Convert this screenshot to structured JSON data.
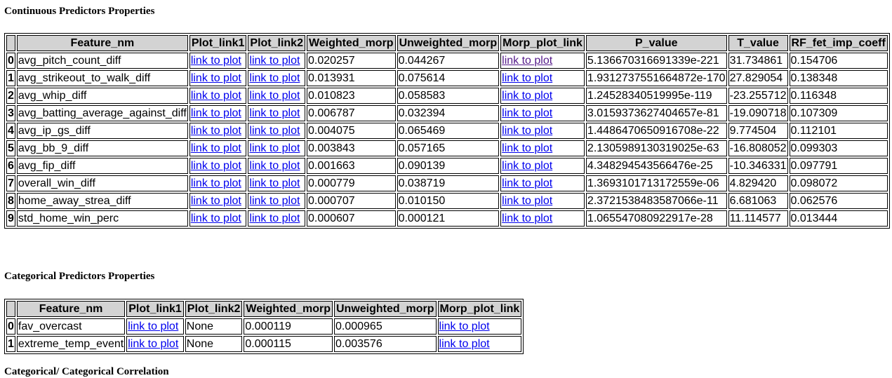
{
  "continuous": {
    "title": "Continuous Predictors Properties",
    "columns": [
      "",
      "Feature_nm",
      "Plot_link1",
      "Plot_link2",
      "Weighted_morp",
      "Unweighted_morp",
      "Morp_plot_link",
      "P_value",
      "T_value",
      "RF_fet_imp_coeff"
    ],
    "link_text": "link to plot",
    "rows": [
      {
        "idx": "0",
        "feature": "avg_pitch_count_diff",
        "weighted": "0.020257",
        "unweighted": "0.044267",
        "p": "5.136670316691339e-221",
        "t": "31.734861",
        "rf": "0.154706",
        "visited": true
      },
      {
        "idx": "1",
        "feature": "avg_strikeout_to_walk_diff",
        "weighted": "0.013931",
        "unweighted": "0.075614",
        "p": "1.9312737551664872e-170",
        "t": "27.829054",
        "rf": "0.138348",
        "visited": false
      },
      {
        "idx": "2",
        "feature": "avg_whip_diff",
        "weighted": "0.010823",
        "unweighted": "0.058583",
        "p": "1.24528340519995e-119",
        "t": "-23.255712",
        "rf": "0.116348",
        "visited": false
      },
      {
        "idx": "3",
        "feature": "avg_batting_average_against_diff",
        "weighted": "0.006787",
        "unweighted": "0.032394",
        "p": "3.0159373627404657e-81",
        "t": "-19.090718",
        "rf": "0.107309",
        "visited": false
      },
      {
        "idx": "4",
        "feature": "avg_ip_gs_diff",
        "weighted": "0.004075",
        "unweighted": "0.065469",
        "p": "1.4486470650916708e-22",
        "t": "9.774504",
        "rf": "0.112101",
        "visited": false
      },
      {
        "idx": "5",
        "feature": "avg_bb_9_diff",
        "weighted": "0.003843",
        "unweighted": "0.057165",
        "p": "2.1305989130319025e-63",
        "t": "-16.808052",
        "rf": "0.099303",
        "visited": false
      },
      {
        "idx": "6",
        "feature": "avg_fip_diff",
        "weighted": "0.001663",
        "unweighted": "0.090139",
        "p": "4.348294543566476e-25",
        "t": "-10.346331",
        "rf": "0.097791",
        "visited": false
      },
      {
        "idx": "7",
        "feature": "overall_win_diff",
        "weighted": "0.000779",
        "unweighted": "0.038719",
        "p": "1.3693101713172559e-06",
        "t": "4.829420",
        "rf": "0.098072",
        "visited": false
      },
      {
        "idx": "8",
        "feature": "home_away_strea_diff",
        "weighted": "0.000707",
        "unweighted": "0.010150",
        "p": "2.3721538483587066e-11",
        "t": "6.681063",
        "rf": "0.062576",
        "visited": false
      },
      {
        "idx": "9",
        "feature": "std_home_win_perc",
        "weighted": "0.000607",
        "unweighted": "0.000121",
        "p": "1.065547080922917e-28",
        "t": "11.114577",
        "rf": "0.013444",
        "visited": false
      }
    ]
  },
  "categorical": {
    "title": "Categorical Predictors Properties",
    "columns": [
      "",
      "Feature_nm",
      "Plot_link1",
      "Plot_link2",
      "Weighted_morp",
      "Unweighted_morp",
      "Morp_plot_link"
    ],
    "link_text": "link to plot",
    "rows": [
      {
        "idx": "0",
        "feature": "fav_overcast",
        "plot2": "None",
        "weighted": "0.000119",
        "unweighted": "0.000965"
      },
      {
        "idx": "1",
        "feature": "extreme_temp_event",
        "plot2": "None",
        "weighted": "0.000115",
        "unweighted": "0.003576"
      }
    ]
  },
  "next_section": {
    "title": "Categorical/ Categorical Correlation"
  },
  "colors": {
    "header_bg": "#d3d3d3",
    "link": "#0000ee",
    "link_visited": "#551a8b"
  }
}
